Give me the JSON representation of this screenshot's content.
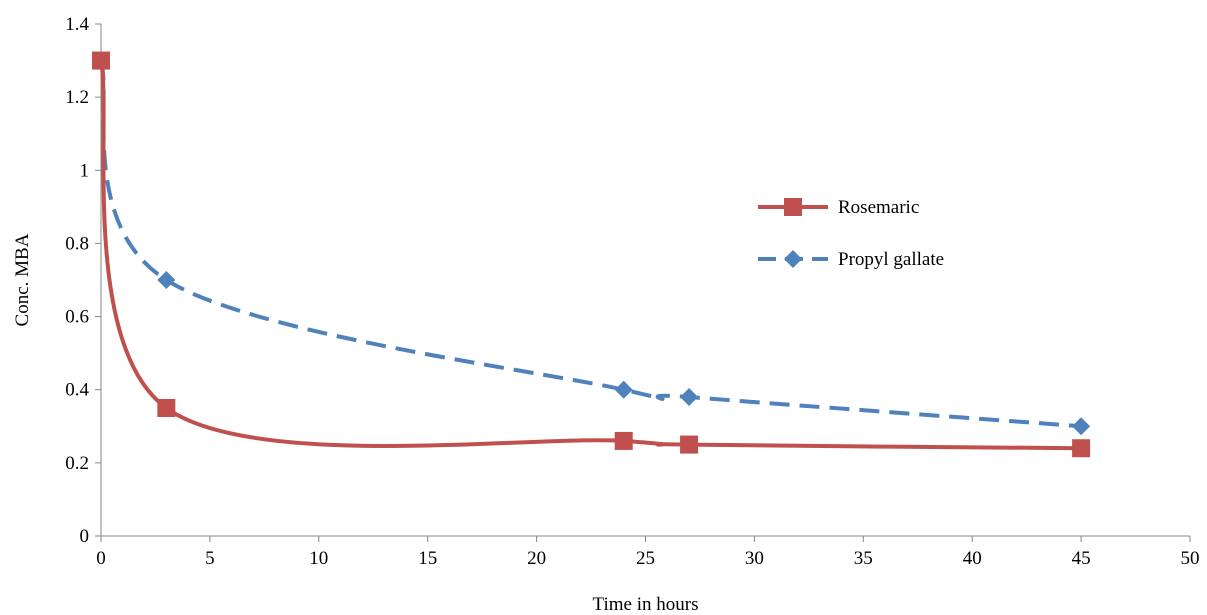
{
  "chart_data": {
    "type": "line",
    "title": "",
    "xlabel": "Time in hours",
    "ylabel": "Conc. MBA",
    "xlim": [
      0,
      50
    ],
    "ylim": [
      0,
      1.4
    ],
    "x_ticks": [
      0,
      5,
      10,
      15,
      20,
      25,
      30,
      35,
      40,
      45,
      50
    ],
    "y_ticks": [
      0,
      0.2,
      0.4,
      0.6,
      0.8,
      1,
      1.2,
      1.4
    ],
    "x_tick_labels": [
      "0",
      "5",
      "10",
      "15",
      "20",
      "25",
      "30",
      "35",
      "40",
      "45",
      "50"
    ],
    "y_tick_labels": [
      "0",
      "0.2",
      "0.4",
      "0.6",
      "0.8",
      "1",
      "1.2",
      "1.4"
    ],
    "grid": false,
    "legend_position": "right",
    "series": [
      {
        "name": "Rosemaric",
        "x": [
          0,
          3,
          24,
          27,
          45
        ],
        "y": [
          1.3,
          0.35,
          0.26,
          0.25,
          0.24
        ],
        "color": "#C0504D",
        "line_style": "solid",
        "marker": "square",
        "smooth": true
      },
      {
        "name": "Propyl gallate",
        "x": [
          0,
          3,
          24,
          27,
          45
        ],
        "y": [
          1.3,
          0.7,
          0.4,
          0.38,
          0.3
        ],
        "color": "#4F81BD",
        "line_style": "dashed",
        "marker": "diamond",
        "smooth": true
      }
    ]
  }
}
